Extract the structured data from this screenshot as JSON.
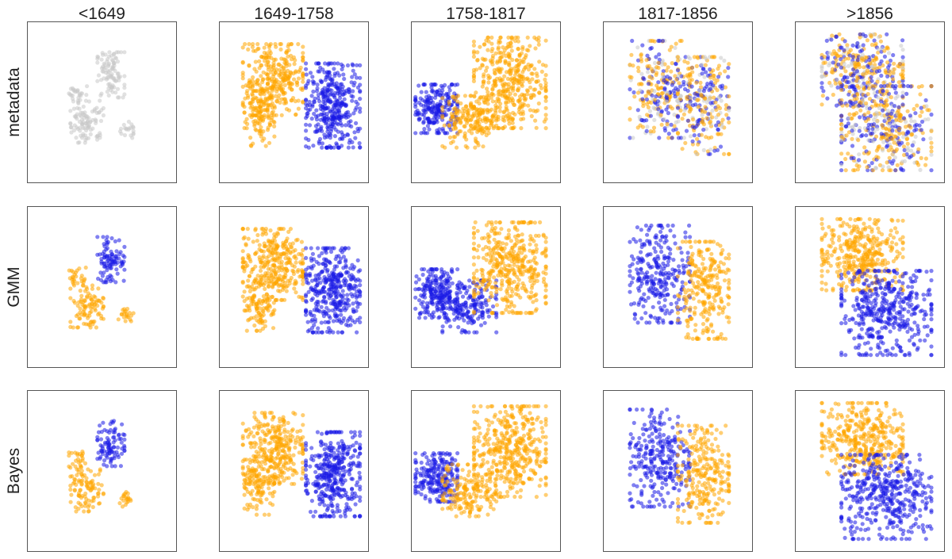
{
  "chart_data": {
    "type": "scatter",
    "columns": [
      "<1649",
      "1649-1758",
      "1758-1817",
      "1817-1856",
      ">1856"
    ],
    "rows": [
      "metadata",
      "GMM",
      "Bayes"
    ],
    "colors": {
      "orange": "#ffa500",
      "blue": "#1a1ae6",
      "gray": "#c8c8c8"
    },
    "axes": {
      "ticks": false,
      "grid": false,
      "frame": true,
      "xlim": [
        0,
        1
      ],
      "ylim": [
        0,
        1
      ]
    },
    "clusters": {
      "<1649": [
        {
          "cx": 0.56,
          "cy": 0.67,
          "rx": 0.09,
          "ry": 0.14,
          "n": 95
        },
        {
          "cx": 0.4,
          "cy": 0.38,
          "rx": 0.11,
          "ry": 0.13,
          "n": 95
        },
        {
          "cx": 0.34,
          "cy": 0.56,
          "rx": 0.06,
          "ry": 0.06,
          "n": 25
        },
        {
          "cx": 0.66,
          "cy": 0.33,
          "rx": 0.05,
          "ry": 0.05,
          "n": 20
        }
      ],
      "1649-1758": [
        {
          "cx": 0.36,
          "cy": 0.64,
          "rx": 0.2,
          "ry": 0.22,
          "n": 320
        },
        {
          "cx": 0.27,
          "cy": 0.4,
          "rx": 0.1,
          "ry": 0.17,
          "n": 110
        },
        {
          "cx": 0.76,
          "cy": 0.48,
          "rx": 0.18,
          "ry": 0.26,
          "n": 380
        }
      ],
      "1758-1817": [
        {
          "cx": 0.17,
          "cy": 0.46,
          "rx": 0.14,
          "ry": 0.15,
          "n": 220
        },
        {
          "cx": 0.39,
          "cy": 0.38,
          "rx": 0.18,
          "ry": 0.16,
          "n": 180
        },
        {
          "cx": 0.66,
          "cy": 0.62,
          "rx": 0.24,
          "ry": 0.28,
          "n": 420
        }
      ],
      "1817-1856": [
        {
          "cx": 0.38,
          "cy": 0.58,
          "rx": 0.2,
          "ry": 0.3,
          "n": 280
        },
        {
          "cx": 0.67,
          "cy": 0.48,
          "rx": 0.17,
          "ry": 0.3,
          "n": 260
        }
      ],
      ">1856": [
        {
          "cx": 0.45,
          "cy": 0.7,
          "rx": 0.27,
          "ry": 0.22,
          "n": 380
        },
        {
          "cx": 0.61,
          "cy": 0.34,
          "rx": 0.3,
          "ry": 0.26,
          "n": 420
        }
      ]
    },
    "assignments": {
      "metadata": {
        "<1649": [
          "gray",
          "gray",
          "gray",
          "gray"
        ],
        "1649-1758": [
          "orange",
          "orange",
          "blue"
        ],
        "1758-1817": [
          "blue",
          "orange",
          "orange"
        ],
        "1817-1856": [
          "mixed",
          "mixed"
        ],
        ">1856": [
          "mixed",
          "mixed"
        ]
      },
      "GMM": {
        "<1649": [
          "blue",
          "orange",
          "orange",
          "orange"
        ],
        "1649-1758": [
          "orange",
          "orange",
          "blue"
        ],
        "1758-1817": [
          "blue",
          "blue",
          "orange"
        ],
        "1817-1856": [
          "blue",
          "orange"
        ],
        ">1856": [
          "orange",
          "blue"
        ]
      },
      "Bayes": {
        "<1649": [
          "blue",
          "orange",
          "orange",
          "orange"
        ],
        "1649-1758": [
          "orange",
          "orange",
          "blue"
        ],
        "1758-1817": [
          "blue",
          "orange",
          "orange"
        ],
        "1817-1856": [
          "blue",
          "orange"
        ],
        ">1856": [
          "orange",
          "blue"
        ]
      }
    }
  }
}
